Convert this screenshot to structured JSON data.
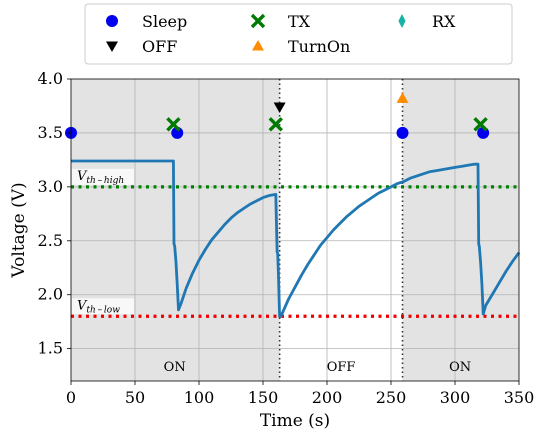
{
  "chart_data": {
    "type": "line",
    "xlabel": "Time (s)",
    "ylabel": "Voltage (V)",
    "xlim": [
      0,
      350
    ],
    "ylim": [
      1.2,
      4.0
    ],
    "x_ticks": [
      0,
      50,
      100,
      150,
      200,
      250,
      300,
      350
    ],
    "y_ticks": [
      1.5,
      2.0,
      2.5,
      3.0,
      3.5,
      4.0
    ],
    "x_tick_labels": [
      "0",
      "50",
      "100",
      "150",
      "200",
      "250",
      "300",
      "350"
    ],
    "y_tick_labels": [
      "1.5",
      "2.0",
      "2.5",
      "3.0",
      "3.5",
      "4.0"
    ],
    "grid": true,
    "legend": {
      "placement": "top",
      "entries": [
        {
          "name": "Sleep",
          "marker": "circle",
          "color": "#0000ee"
        },
        {
          "name": "TX",
          "marker": "cross",
          "color": "#007a00"
        },
        {
          "name": "RX",
          "marker": "diamond",
          "color": "#17b3a6"
        },
        {
          "name": "OFF",
          "marker": "triangle-down",
          "color": "#000000"
        },
        {
          "name": "TurnOn",
          "marker": "triangle-up",
          "color": "#ff8c00"
        }
      ]
    },
    "series": [
      {
        "color": "#1f77b4",
        "x": [
          0,
          80,
          80.5,
          81,
          82,
          83,
          84,
          86,
          90,
          95,
          100,
          105,
          110,
          115,
          120,
          125,
          130,
          135,
          140,
          145,
          150,
          155,
          160,
          161,
          161.5,
          162,
          163,
          164,
          170,
          175,
          180,
          185,
          190,
          195,
          200,
          205,
          210,
          215,
          220,
          225,
          230,
          235,
          240,
          245,
          250,
          255,
          260,
          265,
          270,
          275,
          280,
          285,
          290,
          295,
          300,
          305,
          310,
          315,
          318,
          318.5,
          319,
          320,
          321,
          322,
          324,
          330,
          335,
          340,
          345,
          350
        ],
        "y": [
          3.24,
          3.24,
          2.47,
          2.45,
          2.3,
          2.1,
          1.86,
          1.92,
          2.06,
          2.2,
          2.32,
          2.42,
          2.51,
          2.58,
          2.65,
          2.71,
          2.76,
          2.8,
          2.84,
          2.87,
          2.9,
          2.92,
          2.93,
          2.4,
          2.38,
          2.2,
          1.8,
          1.8,
          1.96,
          2.07,
          2.18,
          2.28,
          2.37,
          2.46,
          2.53,
          2.6,
          2.66,
          2.72,
          2.77,
          2.82,
          2.86,
          2.9,
          2.94,
          2.97,
          3.0,
          3.03,
          3.05,
          3.08,
          3.1,
          3.12,
          3.14,
          3.15,
          3.16,
          3.17,
          3.18,
          3.19,
          3.2,
          3.21,
          3.21,
          2.47,
          2.45,
          2.3,
          2.1,
          1.82,
          1.9,
          2.02,
          2.12,
          2.22,
          2.31,
          2.39
        ]
      }
    ],
    "events": {
      "sleep": {
        "x": [
          0,
          83,
          259,
          322
        ],
        "y": [
          3.5,
          3.5,
          3.5,
          3.5
        ]
      },
      "tx": {
        "x": [
          80,
          160,
          320
        ],
        "y": [
          3.58,
          3.58,
          3.58
        ]
      },
      "off": {
        "x": [
          163
        ],
        "y": [
          3.74
        ]
      },
      "turnon": {
        "x": [
          259
        ],
        "y": [
          3.82
        ]
      }
    },
    "thresholds": [
      {
        "label": "V_th_high",
        "y": 3.0,
        "color": "#008000"
      },
      {
        "label": "V_th_low",
        "y": 1.8,
        "color": "#ee0000"
      }
    ],
    "vlines": [
      163,
      259
    ],
    "shaded_regions": [
      {
        "from": 0,
        "to": 163,
        "color": "#e3e3e3"
      },
      {
        "from": 259,
        "to": 350,
        "color": "#e3e3e3"
      }
    ],
    "region_labels": [
      {
        "text": "ON",
        "x": 81
      },
      {
        "text": "OFF",
        "x": 211
      },
      {
        "text": "ON",
        "x": 304
      }
    ]
  }
}
